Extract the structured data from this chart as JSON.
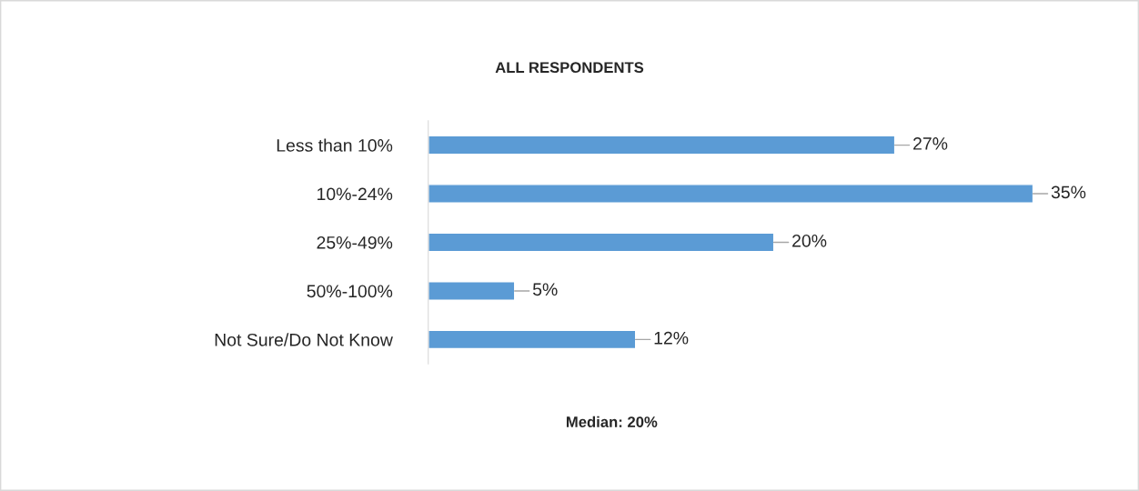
{
  "chart_data": {
    "type": "bar",
    "orientation": "horizontal",
    "title": "ALL RESPONDENTS",
    "categories": [
      "Less than 10%",
      "10%-24%",
      "25%-49%",
      "50%-100%",
      "Not Sure/Do Not Know"
    ],
    "values": [
      27,
      35,
      20,
      5,
      12
    ],
    "value_labels": [
      "27%",
      "35%",
      "20%",
      "5%",
      "12%"
    ],
    "color": "#5b9bd5",
    "tick_labels": "y",
    "grid": false,
    "legend": false,
    "annotations": [
      "Median: 20%"
    ]
  }
}
